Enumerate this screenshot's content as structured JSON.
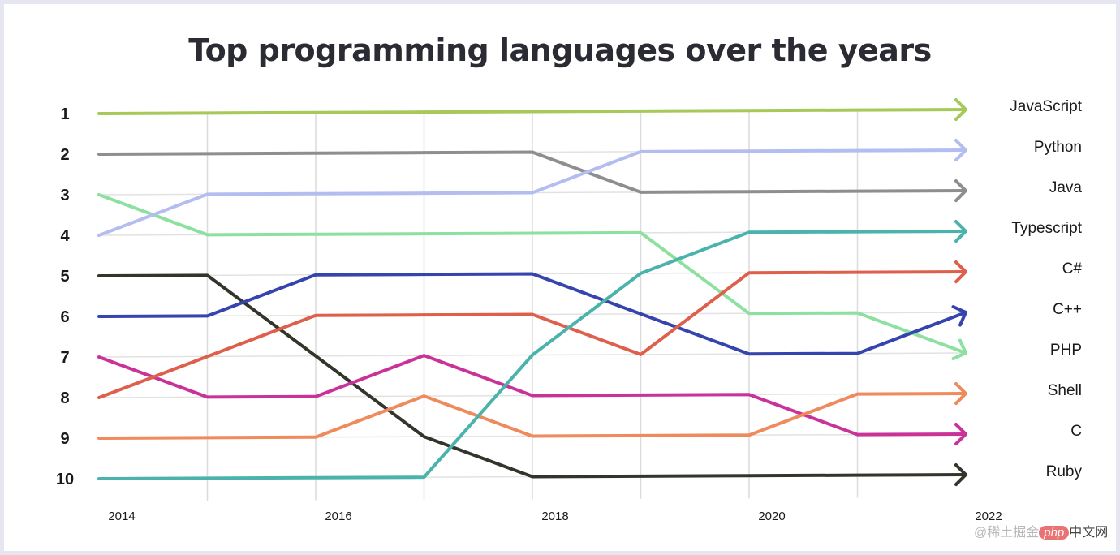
{
  "chart_data": {
    "type": "line",
    "subtype": "bump",
    "title": "Top programming languages over the years",
    "xlabel": "",
    "ylabel": "",
    "x": [
      2014,
      2015,
      2016,
      2017,
      2018,
      2019,
      2020,
      2021,
      2022
    ],
    "x_tick_labels": [
      "2014",
      "2016",
      "2018",
      "2020",
      "2022"
    ],
    "y_tick_labels": [
      "1",
      "2",
      "3",
      "4",
      "5",
      "6",
      "7",
      "8",
      "9",
      "10"
    ],
    "ylim": [
      1,
      10
    ],
    "y_inverted": true,
    "grid": true,
    "legend_placement": "right (labels at line ends)",
    "series": [
      {
        "name": "JavaScript",
        "color": "#a6c95a",
        "values": [
          1,
          1,
          1,
          1,
          1,
          1,
          1,
          1,
          1
        ]
      },
      {
        "name": "Python",
        "color": "#b3bdf0",
        "values": [
          4,
          3,
          3,
          3,
          3,
          2,
          2,
          2,
          2
        ]
      },
      {
        "name": "Java",
        "color": "#8e8e8e",
        "values": [
          2,
          2,
          2,
          2,
          2,
          3,
          3,
          3,
          3
        ]
      },
      {
        "name": "Typescript",
        "color": "#4bb3ac",
        "values": [
          10,
          10,
          10,
          10,
          7,
          5,
          4,
          4,
          4
        ]
      },
      {
        "name": "C#",
        "color": "#dd5f4c",
        "values": [
          8,
          7,
          6,
          6,
          6,
          7,
          5,
          5,
          5
        ]
      },
      {
        "name": "C++",
        "color": "#3545ad",
        "values": [
          6,
          6,
          5,
          5,
          5,
          6,
          7,
          7,
          6
        ]
      },
      {
        "name": "PHP",
        "color": "#8ee0a0",
        "values": [
          3,
          4,
          4,
          4,
          4,
          4,
          6,
          6,
          7
        ]
      },
      {
        "name": "Shell",
        "color": "#ee8a5c",
        "values": [
          9,
          9,
          9,
          8,
          9,
          9,
          9,
          8,
          8
        ]
      },
      {
        "name": "C",
        "color": "#c93399",
        "values": [
          7,
          8,
          8,
          7,
          8,
          8,
          8,
          9,
          9
        ]
      },
      {
        "name": "Ruby",
        "color": "#33352b",
        "values": [
          5,
          5,
          7,
          9,
          10,
          10,
          10,
          10,
          10
        ]
      }
    ]
  },
  "watermark": {
    "prefix": "@稀土掘金",
    "badge": "php",
    "suffix": "中文网"
  }
}
